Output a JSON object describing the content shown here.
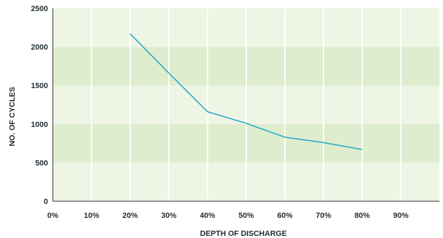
{
  "chart_data": {
    "type": "line",
    "title": "",
    "xlabel": "DEPTH OF DISCHARGE",
    "ylabel": "NO. OF CYCLES",
    "x_ticks": [
      "0%",
      "10%",
      "20%",
      "30%",
      "40%",
      "50%",
      "60%",
      "70%",
      "80%",
      "90%"
    ],
    "y_ticks": [
      "0",
      "500",
      "1000",
      "1500",
      "2000",
      "2500"
    ],
    "xlim": [
      0,
      100
    ],
    "ylim": [
      0,
      2500
    ],
    "grid": "vertical lines, alternating horizontal bands",
    "series": [
      {
        "x": [
          20,
          30,
          40,
          50,
          60,
          70,
          80
        ],
        "y": [
          2170,
          1660,
          1160,
          1010,
          830,
          760,
          670
        ]
      }
    ],
    "colors": {
      "line": "#1aa6c8",
      "band_light": "#eef5e4",
      "band_dark": "#ddedce",
      "gridline": "#ffffff",
      "axis": "#2b2b2b"
    }
  }
}
